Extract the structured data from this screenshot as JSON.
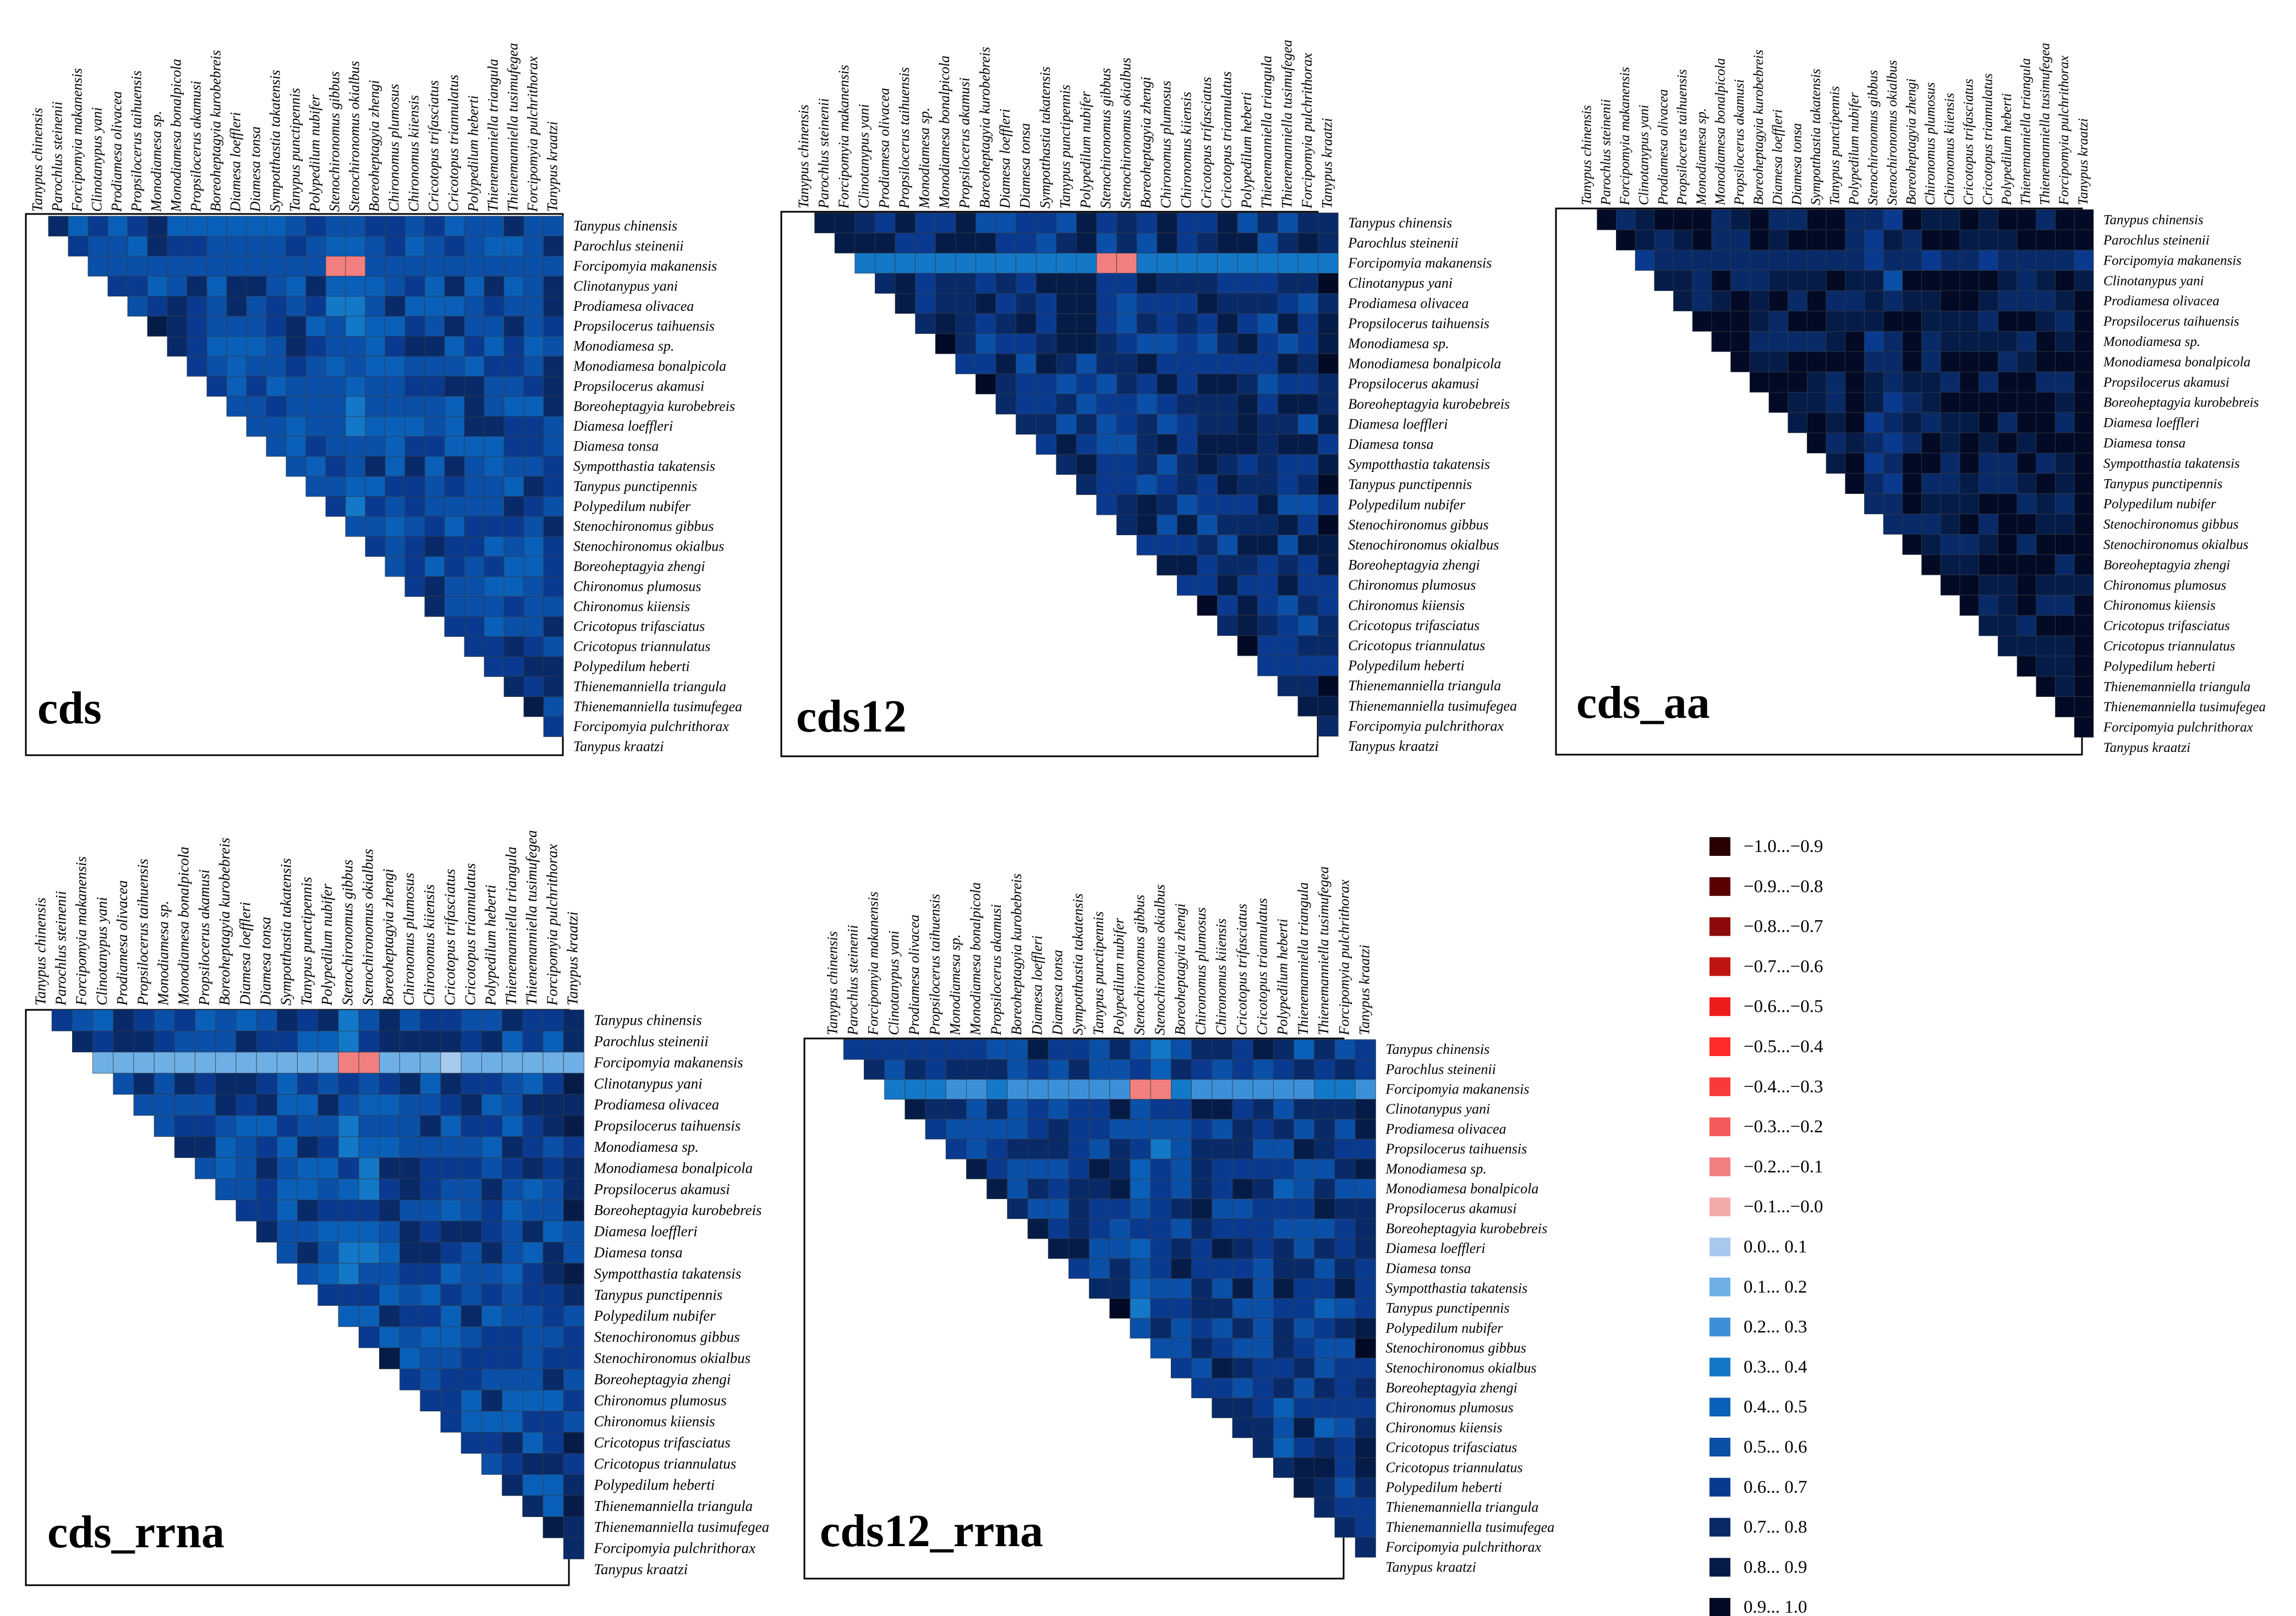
{
  "chart_data": {
    "type": "heatmap",
    "description_title": "",
    "species": [
      "Tanypus  chinensis",
      "Parochlus steinenii",
      "Forcipomyia makanensis",
      "Clinotanypus yani",
      "Prodiamesa olivacea",
      "Propsilocerus taihuensis",
      "Monodiamesa sp.",
      "Monodiamesa bonalpicola",
      "Propsilocerus akamusi",
      "Boreoheptagyia kurobebreis",
      "Diamesa loeffleri",
      "Diamesa tonsa",
      "Sympotthastia takatensis",
      "Tanypus punctipennis",
      "Polypedilum nubifer",
      "Stenochironomus gibbus",
      "Stenochironomus okialbus",
      "Boreoheptagyia zhengi",
      "Chironomus plumosus",
      "Chironomus kiiensis",
      "Cricotopus trifasciatus",
      "Cricotopus triannulatus",
      "Polypedilum heberti",
      "Thienemanniella triangula",
      "Thienemanniella tusimufegea",
      "Forcipomyia pulchrithorax",
      "Tanypus kraatzi"
    ],
    "panels": [
      {
        "title": "cds",
        "highlight_row": 2,
        "highlight_value": 0.55,
        "negative_cols": [
          15,
          16
        ],
        "negative_value": -0.15,
        "base": 0.58
      },
      {
        "title": "cds12",
        "highlight_row": 2,
        "highlight_value": 0.35,
        "negative_cols": [
          15,
          16
        ],
        "negative_value": -0.15,
        "base": 0.72
      },
      {
        "title": "cds_aa",
        "highlight_row": 2,
        "highlight_value": 0.72,
        "negative_cols": [],
        "negative_value": 0,
        "base": 0.88
      },
      {
        "title": "cds_rrna",
        "highlight_row": 2,
        "highlight_value": 0.12,
        "negative_cols": [
          15,
          16
        ],
        "negative_value": -0.12,
        "base": 0.6
      },
      {
        "title": "cds12_rrna",
        "highlight_row": 2,
        "highlight_value": 0.28,
        "negative_cols": [
          15,
          16
        ],
        "negative_value": -0.12,
        "base": 0.66
      }
    ],
    "value_range": [
      -1.0,
      1.0
    ],
    "legend": {
      "placement": "bottom-right",
      "items": [
        {
          "label": "−1.0...−0.9",
          "color": "#2a0000"
        },
        {
          "label": "−0.9...−0.8",
          "color": "#5a0000"
        },
        {
          "label": "−0.8...−0.7",
          "color": "#8c0a0a"
        },
        {
          "label": "−0.7...−0.6",
          "color": "#c01414"
        },
        {
          "label": "−0.6...−0.5",
          "color": "#ee1b1b"
        },
        {
          "label": "−0.5...−0.4",
          "color": "#ff2a2a"
        },
        {
          "label": "−0.4...−0.3",
          "color": "#f83a3a"
        },
        {
          "label": "−0.3...−0.2",
          "color": "#f55a5a"
        },
        {
          "label": "−0.2...−0.1",
          "color": "#f27f7f"
        },
        {
          "label": "−0.1...−0.0",
          "color": "#f5aaaa"
        },
        {
          "label": "0.0... 0.1",
          "color": "#a8c9ee"
        },
        {
          "label": "0.1... 0.2",
          "color": "#6eb0e6"
        },
        {
          "label": "0.2... 0.3",
          "color": "#3d90d8"
        },
        {
          "label": "0.3... 0.4",
          "color": "#1478c8"
        },
        {
          "label": "0.4... 0.5",
          "color": "#0a60b8"
        },
        {
          "label": "0.5... 0.6",
          "color": "#0b50a8"
        },
        {
          "label": "0.6... 0.7",
          "color": "#0a3a90"
        },
        {
          "label": "0.7... 0.8",
          "color": "#082a68"
        },
        {
          "label": "0.8... 0.9",
          "color": "#061c48"
        },
        {
          "label": "0.9... 1.0",
          "color": "#020a25"
        }
      ]
    }
  }
}
